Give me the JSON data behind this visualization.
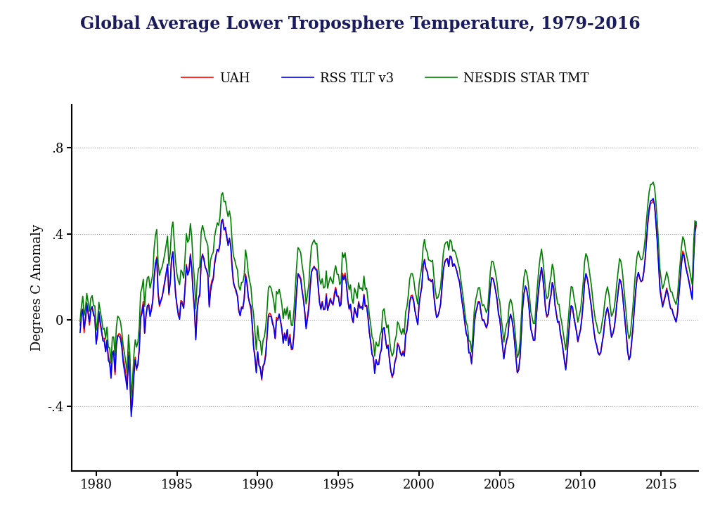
{
  "title": "Global Average Lower Troposphere Temperature, 1979-2016",
  "ylabel": "Degrees C Anomaly",
  "title_color": "#1a1a5e",
  "title_fontsize": 17,
  "label_fontsize": 13,
  "tick_fontsize": 13,
  "legend_fontsize": 13,
  "background_color": "#ffffff",
  "ylim": [
    -0.7,
    1.0
  ],
  "yticks": [
    -0.4,
    0.0,
    0.4,
    0.8
  ],
  "yticklabels": [
    "-.4",
    "0",
    ".4",
    ".8"
  ],
  "series": {
    "UAH": {
      "color": "red",
      "lw": 1.2
    },
    "RSS TLT v3": {
      "color": "blue",
      "lw": 1.2
    },
    "NESDIS STAR TMT": {
      "color": "green",
      "lw": 1.2
    }
  },
  "uah_data": [
    -0.024,
    0.03,
    0.05,
    -0.06,
    0.009,
    0.06,
    0.028,
    -0.024,
    0.044,
    0.057,
    0.034,
    0.01,
    -0.109,
    -0.072,
    0.02,
    -0.02,
    -0.059,
    -0.089,
    -0.085,
    -0.148,
    -0.104,
    -0.167,
    -0.196,
    -0.254,
    -0.147,
    -0.159,
    -0.254,
    -0.113,
    -0.073,
    -0.063,
    -0.069,
    -0.098,
    -0.18,
    -0.206,
    -0.249,
    -0.301,
    -0.148,
    -0.254,
    -0.422,
    -0.349,
    -0.242,
    -0.173,
    -0.233,
    -0.201,
    -0.133,
    0.014,
    0.046,
    0.087,
    -0.06,
    0.024,
    0.06,
    0.075,
    0.025,
    0.043,
    0.083,
    0.188,
    0.248,
    0.293,
    0.121,
    0.063,
    0.085,
    0.106,
    0.148,
    0.181,
    0.219,
    0.254,
    0.116,
    0.174,
    0.286,
    0.316,
    0.222,
    0.126,
    0.064,
    0.034,
    0.021,
    0.09,
    0.085,
    0.055,
    0.145,
    0.258,
    0.218,
    0.231,
    0.307,
    0.244,
    0.127,
    0.045,
    -0.082,
    0.043,
    0.099,
    0.113,
    0.276,
    0.307,
    0.28,
    0.248,
    0.229,
    0.207,
    0.069,
    0.154,
    0.184,
    0.195,
    0.268,
    0.302,
    0.328,
    0.316,
    0.355,
    0.461,
    0.466,
    0.426,
    0.421,
    0.381,
    0.355,
    0.378,
    0.341,
    0.239,
    0.169,
    0.152,
    0.127,
    0.112,
    0.039,
    0.021,
    0.059,
    0.062,
    0.097,
    0.214,
    0.176,
    0.111,
    0.074,
    0.049,
    -0.028,
    -0.124,
    -0.168,
    -0.238,
    -0.148,
    -0.213,
    -0.218,
    -0.279,
    -0.214,
    -0.198,
    -0.154,
    -0.073,
    0.024,
    0.032,
    0.021,
    -0.007,
    -0.034,
    -0.083,
    0.012,
    0.004,
    0.025,
    -0.003,
    -0.041,
    -0.106,
    -0.06,
    -0.085,
    -0.048,
    -0.108,
    -0.066,
    -0.138,
    -0.137,
    -0.064,
    0.035,
    0.133,
    0.215,
    0.208,
    0.194,
    0.14,
    0.098,
    0.039,
    -0.027,
    0.016,
    0.064,
    0.16,
    0.224,
    0.238,
    0.25,
    0.233,
    0.236,
    0.151,
    0.079,
    0.058,
    0.087,
    0.047,
    0.05,
    0.122,
    0.047,
    0.075,
    0.101,
    0.084,
    0.068,
    0.124,
    0.152,
    0.112,
    0.111,
    0.068,
    0.085,
    0.218,
    0.197,
    0.218,
    0.168,
    0.092,
    0.049,
    0.071,
    0.009,
    -0.013,
    0.056,
    0.038,
    0.014,
    0.086,
    0.064,
    0.063,
    0.054,
    0.12,
    0.063,
    0.068,
    0.013,
    -0.056,
    -0.096,
    -0.156,
    -0.175,
    -0.247,
    -0.185,
    -0.204,
    -0.205,
    -0.156,
    -0.136,
    -0.043,
    -0.035,
    -0.087,
    -0.129,
    -0.116,
    -0.187,
    -0.236,
    -0.268,
    -0.247,
    -0.195,
    -0.171,
    -0.107,
    -0.121,
    -0.148,
    -0.166,
    -0.144,
    -0.168,
    -0.068,
    -0.043,
    0.011,
    0.085,
    0.112,
    0.115,
    0.091,
    0.039,
    0.008,
    -0.02,
    0.073,
    0.114,
    0.155,
    0.248,
    0.282,
    0.24,
    0.225,
    0.19,
    0.19,
    0.182,
    0.186,
    0.112,
    0.052,
    0.014,
    0.02,
    0.042,
    0.074,
    0.151,
    0.23,
    0.271,
    0.282,
    0.286,
    0.247,
    0.297,
    0.29,
    0.25,
    0.258,
    0.247,
    0.228,
    0.201,
    0.179,
    0.128,
    0.083,
    0.038,
    -0.017,
    -0.062,
    -0.08,
    -0.15,
    -0.152,
    -0.205,
    -0.116,
    -0.016,
    0.031,
    0.059,
    0.086,
    0.085,
    0.034,
    -0.002,
    0.001,
    -0.015,
    -0.038,
    -0.018,
    0.072,
    0.154,
    0.197,
    0.192,
    0.167,
    0.133,
    0.093,
    0.032,
    0.006,
    -0.064,
    -0.119,
    -0.177,
    -0.13,
    -0.093,
    -0.074,
    0.003,
    0.023,
    0.003,
    -0.041,
    -0.103,
    -0.175,
    -0.246,
    -0.231,
    -0.175,
    -0.058,
    0.058,
    0.124,
    0.155,
    0.14,
    0.101,
    0.037,
    -0.04,
    -0.065,
    -0.093,
    -0.095,
    0.006,
    0.08,
    0.153,
    0.206,
    0.243,
    0.192,
    0.127,
    0.048,
    0.013,
    0.025,
    0.083,
    0.118,
    0.175,
    0.15,
    0.073,
    0.03,
    -0.011,
    -0.009,
    -0.063,
    -0.095,
    -0.141,
    -0.185,
    -0.226,
    -0.159,
    -0.077,
    0.003,
    0.065,
    0.06,
    0.015,
    -0.021,
    -0.056,
    -0.102,
    -0.073,
    -0.046,
    0.01,
    0.081,
    0.175,
    0.212,
    0.193,
    0.154,
    0.107,
    0.064,
    0.003,
    -0.05,
    -0.095,
    -0.116,
    -0.149,
    -0.158,
    -0.15,
    -0.108,
    -0.073,
    -0.009,
    0.032,
    0.058,
    0.028,
    -0.029,
    -0.076,
    -0.065,
    -0.039,
    0.01,
    0.079,
    0.133,
    0.19,
    0.176,
    0.135,
    0.068,
    0.003,
    -0.069,
    -0.143,
    -0.184,
    -0.164,
    -0.101,
    -0.033,
    0.057,
    0.138,
    0.196,
    0.219,
    0.193,
    0.177,
    0.184,
    0.222,
    0.281,
    0.37,
    0.444,
    0.506,
    0.541,
    0.544,
    0.553,
    0.534,
    0.462,
    0.376,
    0.271,
    0.158,
    0.111,
    0.072,
    0.091,
    0.117,
    0.148,
    0.122,
    0.083,
    0.052,
    0.051,
    0.025,
    0.008,
    -0.008,
    0.031,
    0.114,
    0.187,
    0.271,
    0.32,
    0.303,
    0.261,
    0.228,
    0.2,
    0.169,
    0.135,
    0.103,
    0.282,
    0.4,
    0.439
  ],
  "rss_data": [
    -0.059,
    0.02,
    0.05,
    -0.04,
    0.002,
    0.079,
    0.038,
    -0.01,
    0.051,
    0.063,
    0.021,
    0.015,
    -0.113,
    -0.052,
    0.04,
    -0.009,
    -0.049,
    -0.097,
    -0.099,
    -0.148,
    -0.093,
    -0.188,
    -0.2,
    -0.271,
    -0.163,
    -0.143,
    -0.241,
    -0.115,
    -0.073,
    -0.076,
    -0.086,
    -0.127,
    -0.195,
    -0.238,
    -0.276,
    -0.323,
    -0.166,
    -0.263,
    -0.448,
    -0.375,
    -0.261,
    -0.185,
    -0.225,
    -0.208,
    -0.138,
    0.009,
    0.031,
    0.072,
    -0.062,
    0.016,
    0.066,
    0.068,
    0.016,
    0.053,
    0.088,
    0.197,
    0.264,
    0.285,
    0.13,
    0.071,
    0.09,
    0.108,
    0.137,
    0.178,
    0.216,
    0.259,
    0.124,
    0.172,
    0.28,
    0.317,
    0.222,
    0.118,
    0.072,
    0.021,
    0.003,
    0.083,
    0.074,
    0.054,
    0.148,
    0.25,
    0.208,
    0.227,
    0.3,
    0.236,
    0.13,
    0.057,
    -0.093,
    0.04,
    0.101,
    0.123,
    0.269,
    0.302,
    0.287,
    0.244,
    0.234,
    0.209,
    0.06,
    0.133,
    0.168,
    0.19,
    0.257,
    0.298,
    0.328,
    0.322,
    0.355,
    0.45,
    0.467,
    0.418,
    0.43,
    0.392,
    0.345,
    0.38,
    0.345,
    0.251,
    0.177,
    0.151,
    0.139,
    0.108,
    0.046,
    0.019,
    0.06,
    0.051,
    0.099,
    0.204,
    0.173,
    0.108,
    0.079,
    0.065,
    -0.022,
    -0.127,
    -0.18,
    -0.246,
    -0.148,
    -0.209,
    -0.228,
    -0.272,
    -0.216,
    -0.204,
    -0.165,
    -0.074,
    0.019,
    0.017,
    0.016,
    -0.016,
    -0.036,
    -0.087,
    0.0,
    -0.002,
    0.028,
    -0.006,
    -0.046,
    -0.108,
    -0.065,
    -0.096,
    -0.044,
    -0.118,
    -0.082,
    -0.127,
    -0.134,
    -0.066,
    0.033,
    0.14,
    0.215,
    0.199,
    0.188,
    0.136,
    0.095,
    0.036,
    -0.041,
    0.004,
    0.049,
    0.144,
    0.221,
    0.238,
    0.247,
    0.236,
    0.229,
    0.158,
    0.082,
    0.049,
    0.081,
    0.049,
    0.05,
    0.111,
    0.045,
    0.067,
    0.095,
    0.079,
    0.072,
    0.108,
    0.143,
    0.109,
    0.108,
    0.063,
    0.072,
    0.205,
    0.187,
    0.205,
    0.164,
    0.094,
    0.053,
    0.073,
    0.014,
    -0.01,
    0.057,
    0.03,
    0.012,
    0.079,
    0.055,
    0.061,
    0.049,
    0.116,
    0.063,
    0.066,
    0.014,
    -0.056,
    -0.104,
    -0.16,
    -0.173,
    -0.248,
    -0.184,
    -0.208,
    -0.206,
    -0.159,
    -0.137,
    -0.044,
    -0.035,
    -0.088,
    -0.132,
    -0.121,
    -0.186,
    -0.237,
    -0.261,
    -0.248,
    -0.196,
    -0.176,
    -0.115,
    -0.122,
    -0.153,
    -0.167,
    -0.152,
    -0.168,
    -0.071,
    -0.05,
    0.01,
    0.082,
    0.105,
    0.107,
    0.083,
    0.041,
    0.01,
    -0.022,
    0.073,
    0.121,
    0.152,
    0.251,
    0.279,
    0.239,
    0.225,
    0.186,
    0.184,
    0.178,
    0.188,
    0.113,
    0.055,
    0.011,
    0.018,
    0.042,
    0.075,
    0.156,
    0.231,
    0.265,
    0.279,
    0.284,
    0.248,
    0.296,
    0.292,
    0.248,
    0.262,
    0.249,
    0.228,
    0.198,
    0.177,
    0.131,
    0.082,
    0.04,
    -0.012,
    -0.061,
    -0.08,
    -0.153,
    -0.153,
    -0.2,
    -0.119,
    -0.021,
    0.031,
    0.055,
    0.083,
    0.08,
    0.036,
    -0.003,
    0.0,
    -0.021,
    -0.034,
    -0.015,
    0.069,
    0.154,
    0.196,
    0.191,
    0.165,
    0.13,
    0.091,
    0.026,
    0.002,
    -0.063,
    -0.12,
    -0.181,
    -0.132,
    -0.098,
    -0.074,
    -0.001,
    0.027,
    0.003,
    -0.039,
    -0.103,
    -0.177,
    -0.245,
    -0.232,
    -0.177,
    -0.059,
    0.058,
    0.124,
    0.158,
    0.142,
    0.101,
    0.038,
    -0.04,
    -0.066,
    -0.095,
    -0.092,
    0.007,
    0.085,
    0.147,
    0.199,
    0.243,
    0.198,
    0.132,
    0.048,
    0.018,
    0.026,
    0.084,
    0.114,
    0.173,
    0.148,
    0.068,
    0.028,
    -0.011,
    -0.007,
    -0.062,
    -0.094,
    -0.141,
    -0.189,
    -0.232,
    -0.166,
    -0.079,
    0.001,
    0.066,
    0.061,
    0.015,
    -0.02,
    -0.054,
    -0.099,
    -0.07,
    -0.043,
    0.01,
    0.083,
    0.173,
    0.216,
    0.192,
    0.155,
    0.106,
    0.062,
    0.001,
    -0.055,
    -0.1,
    -0.12,
    -0.155,
    -0.163,
    -0.153,
    -0.108,
    -0.069,
    -0.008,
    0.036,
    0.058,
    0.026,
    -0.033,
    -0.081,
    -0.064,
    -0.037,
    0.013,
    0.079,
    0.132,
    0.188,
    0.178,
    0.135,
    0.068,
    -0.001,
    -0.069,
    -0.147,
    -0.185,
    -0.17,
    -0.104,
    -0.035,
    0.053,
    0.135,
    0.196,
    0.221,
    0.195,
    0.179,
    0.183,
    0.222,
    0.283,
    0.37,
    0.456,
    0.519,
    0.551,
    0.556,
    0.564,
    0.536,
    0.454,
    0.363,
    0.255,
    0.14,
    0.098,
    0.06,
    0.084,
    0.109,
    0.14,
    0.118,
    0.08,
    0.052,
    0.05,
    0.023,
    0.008,
    -0.01,
    0.027,
    0.108,
    0.182,
    0.258,
    0.306,
    0.297,
    0.25,
    0.222,
    0.195,
    0.162,
    0.126,
    0.095,
    0.276,
    0.41,
    0.455
  ],
  "nesdis_data": [
    -0.006,
    0.064,
    0.11,
    0.021,
    0.054,
    0.123,
    0.083,
    0.04,
    0.101,
    0.113,
    0.066,
    0.065,
    -0.049,
    -0.007,
    0.082,
    0.041,
    0.007,
    -0.043,
    -0.039,
    -0.088,
    -0.033,
    -0.124,
    -0.131,
    -0.201,
    -0.079,
    -0.079,
    -0.163,
    -0.032,
    0.018,
    0.009,
    -0.007,
    -0.053,
    -0.117,
    -0.155,
    -0.196,
    -0.244,
    -0.069,
    -0.158,
    -0.357,
    -0.278,
    -0.163,
    -0.092,
    -0.126,
    -0.102,
    -0.03,
    0.126,
    0.149,
    0.189,
    0.062,
    0.15,
    0.196,
    0.202,
    0.148,
    0.177,
    0.212,
    0.328,
    0.392,
    0.42,
    0.264,
    0.207,
    0.23,
    0.247,
    0.275,
    0.309,
    0.349,
    0.389,
    0.254,
    0.31,
    0.423,
    0.455,
    0.363,
    0.27,
    0.214,
    0.182,
    0.164,
    0.232,
    0.22,
    0.194,
    0.287,
    0.401,
    0.361,
    0.373,
    0.448,
    0.385,
    0.268,
    0.187,
    0.052,
    0.18,
    0.237,
    0.247,
    0.407,
    0.439,
    0.415,
    0.38,
    0.364,
    0.344,
    0.2,
    0.278,
    0.302,
    0.314,
    0.388,
    0.422,
    0.451,
    0.439,
    0.479,
    0.58,
    0.591,
    0.549,
    0.551,
    0.51,
    0.48,
    0.506,
    0.469,
    0.365,
    0.297,
    0.278,
    0.25,
    0.232,
    0.157,
    0.138,
    0.175,
    0.175,
    0.21,
    0.325,
    0.287,
    0.219,
    0.182,
    0.154,
    0.073,
    0.025,
    -0.059,
    -0.139,
    -0.027,
    -0.094,
    -0.099,
    -0.163,
    -0.095,
    -0.078,
    -0.032,
    0.05,
    0.149,
    0.158,
    0.148,
    0.119,
    0.084,
    0.034,
    0.132,
    0.121,
    0.143,
    0.112,
    0.072,
    0.005,
    0.052,
    0.022,
    0.06,
    0.004,
    0.044,
    -0.024,
    -0.026,
    0.049,
    0.149,
    0.253,
    0.336,
    0.327,
    0.312,
    0.256,
    0.214,
    0.152,
    0.074,
    0.118,
    0.165,
    0.267,
    0.342,
    0.36,
    0.372,
    0.353,
    0.355,
    0.266,
    0.19,
    0.166,
    0.192,
    0.148,
    0.154,
    0.228,
    0.147,
    0.175,
    0.2,
    0.183,
    0.168,
    0.225,
    0.252,
    0.213,
    0.211,
    0.164,
    0.176,
    0.313,
    0.29,
    0.312,
    0.259,
    0.181,
    0.14,
    0.163,
    0.1,
    0.077,
    0.148,
    0.127,
    0.101,
    0.173,
    0.145,
    0.149,
    0.136,
    0.204,
    0.143,
    0.148,
    0.093,
    0.021,
    -0.02,
    -0.077,
    -0.095,
    -0.168,
    -0.102,
    -0.12,
    -0.12,
    -0.071,
    -0.052,
    0.042,
    0.052,
    0.0,
    -0.037,
    -0.023,
    -0.091,
    -0.142,
    -0.168,
    -0.151,
    -0.098,
    -0.073,
    -0.009,
    -0.021,
    -0.049,
    -0.067,
    -0.041,
    -0.066,
    0.038,
    0.062,
    0.118,
    0.19,
    0.215,
    0.215,
    0.189,
    0.136,
    0.106,
    0.074,
    0.168,
    0.207,
    0.246,
    0.339,
    0.374,
    0.331,
    0.316,
    0.279,
    0.277,
    0.271,
    0.277,
    0.203,
    0.141,
    0.099,
    0.104,
    0.125,
    0.156,
    0.231,
    0.31,
    0.349,
    0.361,
    0.363,
    0.324,
    0.372,
    0.363,
    0.32,
    0.325,
    0.313,
    0.29,
    0.263,
    0.238,
    0.187,
    0.139,
    0.093,
    0.036,
    -0.011,
    -0.03,
    -0.099,
    -0.098,
    -0.149,
    -0.062,
    0.041,
    0.091,
    0.12,
    0.149,
    0.15,
    0.1,
    0.066,
    0.071,
    0.055,
    0.034,
    0.053,
    0.143,
    0.228,
    0.273,
    0.271,
    0.244,
    0.21,
    0.17,
    0.109,
    0.084,
    0.012,
    -0.041,
    -0.103,
    -0.055,
    -0.021,
    -0.005,
    0.074,
    0.097,
    0.076,
    0.031,
    -0.032,
    -0.103,
    -0.174,
    -0.158,
    -0.103,
    0.014,
    0.132,
    0.2,
    0.233,
    0.218,
    0.178,
    0.116,
    0.039,
    0.012,
    -0.017,
    -0.016,
    0.086,
    0.162,
    0.237,
    0.291,
    0.329,
    0.278,
    0.213,
    0.134,
    0.099,
    0.109,
    0.168,
    0.201,
    0.259,
    0.234,
    0.158,
    0.116,
    0.074,
    0.073,
    0.02,
    -0.011,
    -0.055,
    -0.098,
    -0.139,
    -0.072,
    0.011,
    0.092,
    0.155,
    0.152,
    0.107,
    0.072,
    0.037,
    -0.01,
    0.02,
    0.048,
    0.104,
    0.176,
    0.27,
    0.308,
    0.292,
    0.252,
    0.206,
    0.163,
    0.102,
    0.046,
    0.0,
    -0.021,
    -0.055,
    -0.063,
    -0.054,
    -0.012,
    0.022,
    0.085,
    0.127,
    0.154,
    0.123,
    0.065,
    0.017,
    0.03,
    0.055,
    0.104,
    0.173,
    0.228,
    0.285,
    0.272,
    0.231,
    0.163,
    0.098,
    0.025,
    -0.05,
    -0.087,
    -0.068,
    -0.003,
    0.066,
    0.156,
    0.238,
    0.296,
    0.32,
    0.295,
    0.279,
    0.283,
    0.319,
    0.377,
    0.462,
    0.534,
    0.595,
    0.628,
    0.631,
    0.64,
    0.617,
    0.55,
    0.461,
    0.353,
    0.237,
    0.186,
    0.145,
    0.165,
    0.192,
    0.223,
    0.199,
    0.16,
    0.131,
    0.13,
    0.104,
    0.087,
    0.072,
    0.107,
    0.189,
    0.261,
    0.338,
    0.386,
    0.371,
    0.327,
    0.295,
    0.267,
    0.233,
    0.197,
    0.165,
    0.349,
    0.461,
    0.446
  ],
  "grid_color": "#888888",
  "grid_alpha": 0.8,
  "xtick_years": [
    1980,
    1985,
    1990,
    1995,
    2000,
    2005,
    2010,
    2015
  ],
  "start_year": 1979,
  "start_month": 1,
  "xlim_left": 1978.5,
  "xlim_right": 2017.3
}
